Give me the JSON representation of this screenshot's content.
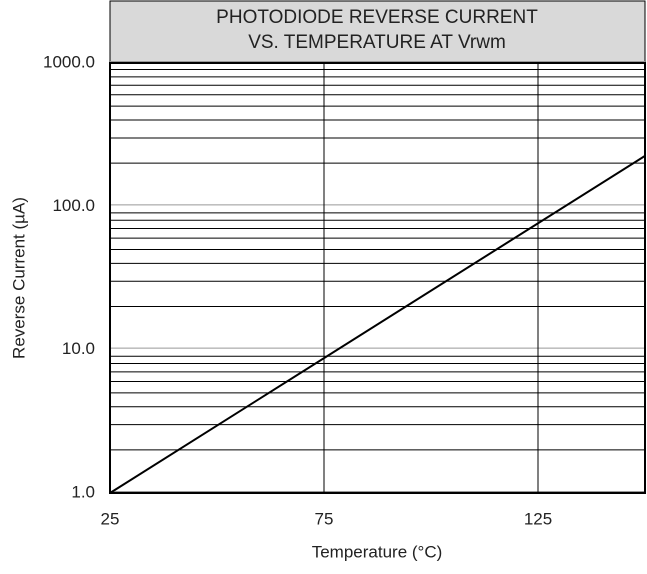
{
  "chart_data": {
    "type": "line",
    "title": [
      "PHOTODIODE REVERSE CURRENT",
      "VS. TEMPERATURE AT Vrwm"
    ],
    "x_label": "Temperature (°C)",
    "y_label": "Reverse Current (µA)",
    "x": [
      25,
      150
    ],
    "series": [
      {
        "color": "#000000",
        "values": [
          1,
          225
        ]
      }
    ],
    "xlim": [
      25,
      150
    ],
    "xticks": [
      25,
      75,
      125
    ],
    "ylim": [
      1,
      1000
    ],
    "yticks": [
      {
        "value": 1,
        "label": "1.0"
      },
      {
        "value": 10,
        "label": "10.0"
      },
      {
        "value": 100,
        "label": "100.0"
      },
      {
        "value": 1000,
        "label": "1000.0"
      }
    ],
    "yticks_minor": [
      2,
      3,
      4,
      5,
      6,
      7,
      8,
      9,
      20,
      30,
      40,
      50,
      60,
      70,
      80,
      90,
      200,
      300,
      400,
      500,
      600,
      700,
      800,
      900
    ],
    "log_y": true,
    "grid": true
  }
}
